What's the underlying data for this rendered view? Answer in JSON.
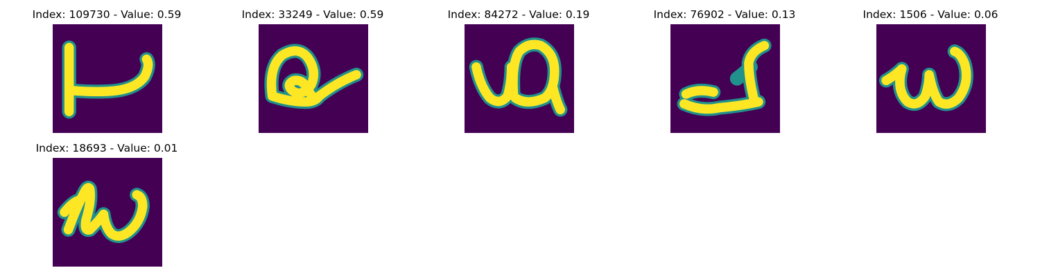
{
  "colormap": {
    "background": "#440154",
    "low": "#3b528b",
    "mid": "#21918c",
    "high": "#5ec962",
    "peak": "#fde725"
  },
  "panels": [
    {
      "title": "Index: 109730 - Value: 0.59",
      "index": 109730,
      "value": 0.59,
      "glyph": "letter-like stroke resembling an upside-down T with a hook"
    },
    {
      "title": "Index: 33249 - Value: 0.59",
      "index": 33249,
      "value": 0.59,
      "glyph": "cursive loop with a long tail to the right"
    },
    {
      "title": "Index: 84272 - Value: 0.19",
      "index": 84272,
      "value": 0.19,
      "glyph": "cursive stroke with an open loop"
    },
    {
      "title": "Index: 76902 - Value: 0.13",
      "index": 76902,
      "value": 0.13,
      "glyph": "flat base stroke with a rising curl"
    },
    {
      "title": "Index: 1506 - Value: 0.06",
      "index": 1506,
      "value": 0.06,
      "glyph": "cursive w shape"
    },
    {
      "title": "Index: 18693 - Value: 0.01",
      "index": 18693,
      "value": 0.01,
      "glyph": "slanted cursive w shape"
    }
  ]
}
